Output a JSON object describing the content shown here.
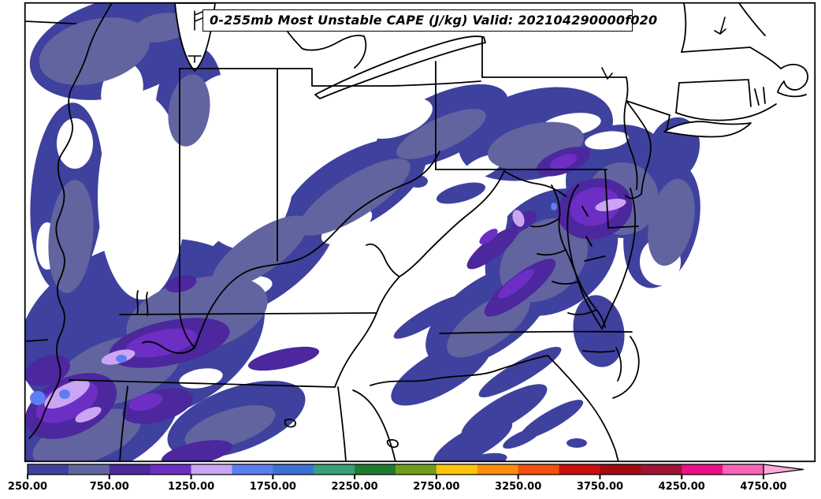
{
  "title": {
    "text": "0-255mb Most Unstable CAPE (J/kg) Valid: 202104290000f020"
  },
  "map": {
    "type": "filled-contour forecast map",
    "region": "Eastern United States",
    "background_color": "#ffffff",
    "border_color": "#000000"
  },
  "colorbar": {
    "units": "J/kg",
    "tick_labels": [
      "250.00",
      "750.00",
      "1250.00",
      "1750.00",
      "2250.00",
      "2750.00",
      "3250.00",
      "3750.00",
      "4250.00",
      "4750.00"
    ],
    "segments": [
      {
        "from": 250,
        "to": 500,
        "color": "#3F419E"
      },
      {
        "from": 500,
        "to": 750,
        "color": "#62649F"
      },
      {
        "from": 750,
        "to": 1000,
        "color": "#4C279E"
      },
      {
        "from": 1000,
        "to": 1250,
        "color": "#6D2EC5"
      },
      {
        "from": 1250,
        "to": 1500,
        "color": "#CBA5F3"
      },
      {
        "from": 1500,
        "to": 1750,
        "color": "#5C7EF3"
      },
      {
        "from": 1750,
        "to": 2000,
        "color": "#3B72D8"
      },
      {
        "from": 2000,
        "to": 2250,
        "color": "#37A078"
      },
      {
        "from": 2250,
        "to": 2500,
        "color": "#1E7C2E"
      },
      {
        "from": 2500,
        "to": 2750,
        "color": "#6F9E1C"
      },
      {
        "from": 2750,
        "to": 3000,
        "color": "#FEC50C"
      },
      {
        "from": 3000,
        "to": 3250,
        "color": "#FD8D0E"
      },
      {
        "from": 3250,
        "to": 3500,
        "color": "#F1500D"
      },
      {
        "from": 3500,
        "to": 3750,
        "color": "#CB0D0D"
      },
      {
        "from": 3750,
        "to": 4000,
        "color": "#A30A0E"
      },
      {
        "from": 4000,
        "to": 4250,
        "color": "#9E1236"
      },
      {
        "from": 4250,
        "to": 4500,
        "color": "#EC0F86"
      },
      {
        "from": 4500,
        "to": 4750,
        "color": "#FA64B8"
      }
    ],
    "overflow_arrow_color": "#FAAAD8"
  }
}
